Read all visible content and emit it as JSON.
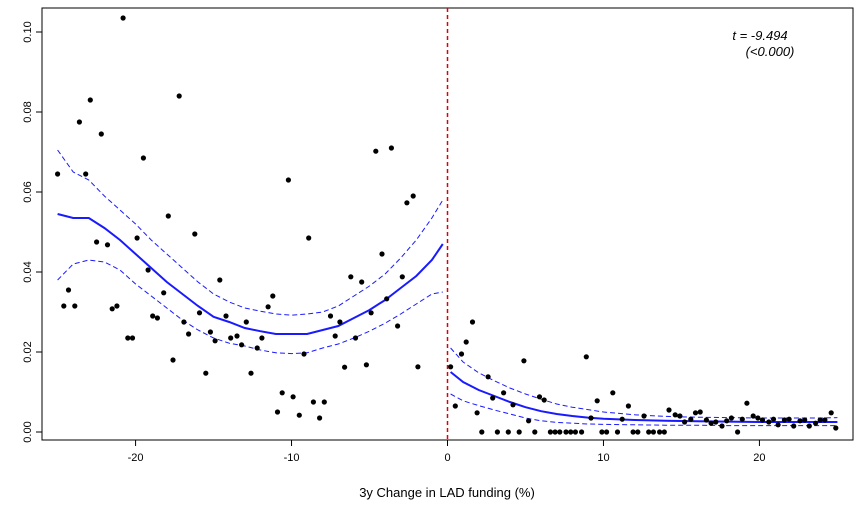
{
  "chart_data": {
    "type": "scatter",
    "title": "",
    "xlabel": "3y Change in LAD funding (%)",
    "ylabel": "",
    "xlim": [
      -26,
      26
    ],
    "ylim": [
      -0.002,
      0.106
    ],
    "xticks": [
      -20,
      -10,
      0,
      10,
      20
    ],
    "yticks": [
      0.0,
      0.02,
      0.04,
      0.06,
      0.08,
      0.1
    ],
    "ytick_labels": [
      "0.00",
      "0.02",
      "0.04",
      "0.06",
      "0.08",
      "0.10"
    ],
    "cutoff_x": 0,
    "cutoff_color": "#e00000",
    "fit_color": "#1a1aff",
    "point_color": "#000000",
    "annotation": {
      "statistic": "t = -9.494",
      "pvalue": "(<0.000)"
    },
    "points": [
      [
        -25,
        0.0645
      ],
      [
        -24.6,
        0.0315
      ],
      [
        -24.3,
        0.0355
      ],
      [
        -23.9,
        0.0315
      ],
      [
        -23.6,
        0.0775
      ],
      [
        -23.2,
        0.0645
      ],
      [
        -22.9,
        0.083
      ],
      [
        -22.5,
        0.0475
      ],
      [
        -22.2,
        0.0745
      ],
      [
        -21.8,
        0.0468
      ],
      [
        -21.5,
        0.0308
      ],
      [
        -21.2,
        0.0315
      ],
      [
        -20.8,
        0.1035
      ],
      [
        -20.5,
        0.0235
      ],
      [
        -20.2,
        0.0235
      ],
      [
        -19.9,
        0.0485
      ],
      [
        -19.5,
        0.0685
      ],
      [
        -19.2,
        0.0405
      ],
      [
        -18.9,
        0.029
      ],
      [
        -18.6,
        0.0285
      ],
      [
        -18.2,
        0.0348
      ],
      [
        -17.9,
        0.054
      ],
      [
        -17.6,
        0.018
      ],
      [
        -17.2,
        0.084
      ],
      [
        -16.9,
        0.0275
      ],
      [
        -16.6,
        0.0245
      ],
      [
        -16.2,
        0.0495
      ],
      [
        -15.9,
        0.0298
      ],
      [
        -15.5,
        0.0147
      ],
      [
        -15.2,
        0.025
      ],
      [
        -14.9,
        0.0228
      ],
      [
        -14.6,
        0.038
      ],
      [
        -14.2,
        0.029
      ],
      [
        -13.9,
        0.0235
      ],
      [
        -13.5,
        0.024
      ],
      [
        -13.2,
        0.0218
      ],
      [
        -12.9,
        0.0275
      ],
      [
        -12.6,
        0.0147
      ],
      [
        -12.2,
        0.021
      ],
      [
        -11.9,
        0.0235
      ],
      [
        -11.5,
        0.0313
      ],
      [
        -11.2,
        0.034
      ],
      [
        -10.9,
        0.005
      ],
      [
        -10.6,
        0.0098
      ],
      [
        -10.2,
        0.063
      ],
      [
        -9.9,
        0.0088
      ],
      [
        -9.5,
        0.0042
      ],
      [
        -9.2,
        0.0195
      ],
      [
        -8.9,
        0.0485
      ],
      [
        -8.6,
        0.0075
      ],
      [
        -8.2,
        0.0035
      ],
      [
        -7.9,
        0.0075
      ],
      [
        -7.5,
        0.029
      ],
      [
        -7.2,
        0.024
      ],
      [
        -6.9,
        0.0275
      ],
      [
        -6.6,
        0.0162
      ],
      [
        -6.2,
        0.0388
      ],
      [
        -5.9,
        0.0235
      ],
      [
        -5.5,
        0.0375
      ],
      [
        -5.2,
        0.0168
      ],
      [
        -4.9,
        0.0298
      ],
      [
        -4.6,
        0.0702
      ],
      [
        -4.2,
        0.0445
      ],
      [
        -3.9,
        0.0333
      ],
      [
        -3.6,
        0.071
      ],
      [
        -3.2,
        0.0265
      ],
      [
        -2.9,
        0.0388
      ],
      [
        -2.6,
        0.0573
      ],
      [
        -2.2,
        0.059
      ],
      [
        -1.9,
        0.0163
      ],
      [
        0.2,
        0.0163
      ],
      [
        0.5,
        0.0065
      ],
      [
        0.9,
        0.0195
      ],
      [
        1.2,
        0.0225
      ],
      [
        1.6,
        0.0275
      ],
      [
        1.9,
        0.0048
      ],
      [
        2.2,
        0.0
      ],
      [
        2.6,
        0.0138
      ],
      [
        2.9,
        0.0085
      ],
      [
        3.2,
        0.0
      ],
      [
        3.6,
        0.0098
      ],
      [
        3.9,
        0.0
      ],
      [
        4.2,
        0.0068
      ],
      [
        4.6,
        0.0
      ],
      [
        4.9,
        0.0178
      ],
      [
        5.2,
        0.0028
      ],
      [
        5.6,
        0.0
      ],
      [
        5.9,
        0.0088
      ],
      [
        6.2,
        0.008
      ],
      [
        6.6,
        0.0
      ],
      [
        6.9,
        0.0
      ],
      [
        7.2,
        0.0
      ],
      [
        7.6,
        0.0
      ],
      [
        7.9,
        0.0
      ],
      [
        8.2,
        0.0
      ],
      [
        8.6,
        0.0
      ],
      [
        8.9,
        0.0188
      ],
      [
        9.2,
        0.0035
      ],
      [
        9.6,
        0.0078
      ],
      [
        9.9,
        0.0
      ],
      [
        10.2,
        0.0
      ],
      [
        10.6,
        0.0098
      ],
      [
        10.9,
        0.0
      ],
      [
        11.2,
        0.0032
      ],
      [
        11.6,
        0.0065
      ],
      [
        11.9,
        0.0
      ],
      [
        12.2,
        0.0
      ],
      [
        12.6,
        0.004
      ],
      [
        12.9,
        0.0
      ],
      [
        13.2,
        0.0
      ],
      [
        13.6,
        0.0
      ],
      [
        13.9,
        0.0
      ],
      [
        14.2,
        0.0055
      ],
      [
        14.6,
        0.0043
      ],
      [
        14.9,
        0.004
      ],
      [
        15.2,
        0.0025
      ],
      [
        15.6,
        0.0032
      ],
      [
        15.9,
        0.0048
      ],
      [
        16.2,
        0.005
      ],
      [
        16.6,
        0.003
      ],
      [
        16.9,
        0.0022
      ],
      [
        17.2,
        0.0025
      ],
      [
        17.6,
        0.0015
      ],
      [
        17.9,
        0.0028
      ],
      [
        18.2,
        0.0035
      ],
      [
        18.6,
        0.0
      ],
      [
        18.9,
        0.0032
      ],
      [
        19.2,
        0.0072
      ],
      [
        19.6,
        0.004
      ],
      [
        19.9,
        0.0035
      ],
      [
        20.2,
        0.003
      ],
      [
        20.6,
        0.0025
      ],
      [
        20.9,
        0.0032
      ],
      [
        21.2,
        0.0018
      ],
      [
        21.6,
        0.003
      ],
      [
        21.9,
        0.0032
      ],
      [
        22.2,
        0.0015
      ],
      [
        22.6,
        0.0028
      ],
      [
        22.9,
        0.003
      ],
      [
        23.2,
        0.0015
      ],
      [
        23.6,
        0.0022
      ],
      [
        23.9,
        0.003
      ],
      [
        24.2,
        0.003
      ],
      [
        24.6,
        0.0048
      ],
      [
        24.9,
        0.001
      ]
    ],
    "fit_left": {
      "x": [
        -25,
        -24,
        -23,
        -22,
        -21,
        -20,
        -19,
        -18,
        -17,
        -16,
        -15,
        -14,
        -13,
        -12,
        -11,
        -10,
        -9,
        -8,
        -7,
        -6,
        -5,
        -4,
        -3,
        -2,
        -1,
        -0.3
      ],
      "y": [
        0.0545,
        0.0535,
        0.0535,
        0.051,
        0.048,
        0.0445,
        0.041,
        0.0375,
        0.0345,
        0.0315,
        0.0288,
        0.0275,
        0.026,
        0.0252,
        0.0245,
        0.0245,
        0.0245,
        0.0255,
        0.0265,
        0.0285,
        0.0305,
        0.033,
        0.036,
        0.039,
        0.043,
        0.047
      ],
      "upper": [
        0.0705,
        0.065,
        0.063,
        0.059,
        0.0555,
        0.052,
        0.048,
        0.0445,
        0.041,
        0.0375,
        0.0345,
        0.0325,
        0.031,
        0.0302,
        0.0295,
        0.0292,
        0.0295,
        0.03,
        0.0315,
        0.034,
        0.0365,
        0.0395,
        0.0435,
        0.048,
        0.0535,
        0.058
      ],
      "lower": [
        0.038,
        0.042,
        0.043,
        0.0425,
        0.0405,
        0.037,
        0.034,
        0.031,
        0.028,
        0.0255,
        0.0235,
        0.0222,
        0.0215,
        0.0205,
        0.0198,
        0.0196,
        0.0198,
        0.021,
        0.022,
        0.0235,
        0.0252,
        0.0272,
        0.0295,
        0.032,
        0.0345,
        0.035
      ]
    },
    "fit_right": {
      "x": [
        0.2,
        1,
        2,
        3,
        4,
        5,
        6,
        7,
        8,
        9,
        10,
        12,
        14,
        16,
        18,
        20,
        22,
        24,
        25
      ],
      "y": [
        0.015,
        0.0125,
        0.0105,
        0.009,
        0.0075,
        0.0062,
        0.0052,
        0.0045,
        0.004,
        0.0036,
        0.0033,
        0.003,
        0.0028,
        0.0027,
        0.0026,
        0.0025,
        0.0025,
        0.0025,
        0.0025
      ],
      "upper": [
        0.021,
        0.0175,
        0.0148,
        0.0128,
        0.011,
        0.0095,
        0.0082,
        0.007,
        0.0062,
        0.0056,
        0.005,
        0.0043,
        0.0039,
        0.0037,
        0.0036,
        0.0035,
        0.0035,
        0.0035,
        0.0036
      ],
      "lower": [
        0.0095,
        0.0078,
        0.0066,
        0.0055,
        0.0045,
        0.0035,
        0.0028,
        0.0024,
        0.0022,
        0.002,
        0.0019,
        0.0018,
        0.0017,
        0.0017,
        0.0016,
        0.0016,
        0.0016,
        0.0016,
        0.0016
      ]
    }
  }
}
